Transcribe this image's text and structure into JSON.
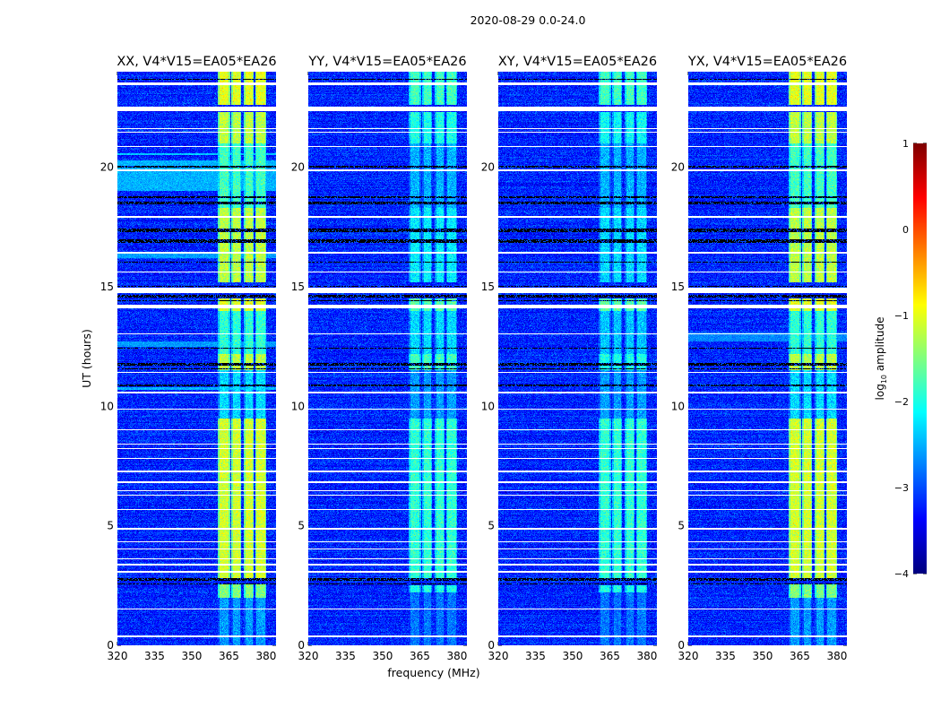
{
  "chart_data": {
    "type": "heatmap",
    "title": "2020-08-29 0.0-24.0",
    "xlabel": "frequency (MHz)",
    "ylabel": "UT (hours)",
    "xlim": [
      320,
      384
    ],
    "ylim": [
      0,
      24
    ],
    "xticks": [
      "320",
      "335",
      "350",
      "365",
      "380"
    ],
    "xtick_values": [
      320,
      335,
      350,
      365,
      380
    ],
    "yticks": [
      "0",
      "5",
      "10",
      "15",
      "20"
    ],
    "ytick_values": [
      0,
      5,
      10,
      15,
      20
    ],
    "colorbar": {
      "label": "log10 amplitude",
      "label_main": "log",
      "label_sub": "10",
      "label_rest": " amplitude",
      "range": [
        -4,
        1
      ],
      "ticks": [
        "1",
        "0",
        "−1",
        "−2",
        "−3",
        "−4"
      ],
      "tick_values": [
        1,
        0,
        -1,
        -2,
        -3,
        -4
      ],
      "colormap": "jet"
    },
    "background_level": -3.2,
    "rfi_channels_mhz": [
      [
        360.5,
        365.5
      ],
      [
        366,
        370
      ],
      [
        371,
        375
      ],
      [
        375.6,
        380
      ]
    ],
    "flagged_hours_white": [
      [
        23.45,
        23.55
      ],
      [
        22.35,
        22.55
      ],
      [
        21.6,
        21.65
      ],
      [
        21.45,
        21.5
      ],
      [
        20.85,
        20.9
      ],
      [
        19.85,
        19.9
      ],
      [
        17.9,
        17.95
      ],
      [
        16.4,
        16.45
      ],
      [
        15.6,
        15.65
      ],
      [
        14.75,
        14.95
      ],
      [
        14.1,
        14.25
      ],
      [
        13.0,
        13.05
      ],
      [
        11.4,
        11.45
      ],
      [
        10.55,
        10.6
      ],
      [
        9.85,
        9.9
      ],
      [
        9.0,
        9.05
      ],
      [
        8.4,
        8.45
      ],
      [
        8.2,
        8.25
      ],
      [
        7.8,
        7.85
      ],
      [
        7.25,
        7.3
      ],
      [
        6.8,
        6.85
      ],
      [
        6.45,
        6.5
      ],
      [
        6.25,
        6.3
      ],
      [
        5.65,
        5.7
      ],
      [
        4.85,
        4.9
      ],
      [
        4.3,
        4.35
      ],
      [
        4.0,
        4.05
      ],
      [
        3.6,
        3.65
      ],
      [
        3.35,
        3.4
      ],
      [
        3.05,
        3.1
      ],
      [
        1.5,
        1.55
      ],
      [
        0.35,
        0.4
      ]
    ],
    "flagged_hours_black": [
      [
        23.65,
        23.7
      ],
      [
        20.0,
        20.05
      ],
      [
        18.7,
        18.8
      ],
      [
        18.45,
        18.55
      ],
      [
        17.3,
        17.45
      ],
      [
        16.85,
        17.0
      ],
      [
        16.0,
        16.05
      ],
      [
        15.0,
        15.05
      ],
      [
        14.55,
        14.65
      ],
      [
        14.4,
        14.45
      ],
      [
        12.4,
        12.45
      ],
      [
        11.7,
        11.8
      ],
      [
        11.55,
        11.6
      ],
      [
        10.85,
        10.9
      ],
      [
        2.7,
        2.8
      ],
      [
        2.55,
        2.6
      ]
    ],
    "panels": [
      {
        "title": "XX, V4*V15=EA05*EA26",
        "rfi_activity": [
          [
            0,
            2.0,
            -2.6
          ],
          [
            2.0,
            2.6,
            -1.5
          ],
          [
            2.8,
            9.5,
            -1.1
          ],
          [
            9.5,
            11.5,
            -2.3
          ],
          [
            11.5,
            12.2,
            -1.2
          ],
          [
            12.2,
            14.0,
            -1.9
          ],
          [
            14.0,
            14.5,
            -1.0
          ],
          [
            15.2,
            18.3,
            -1.2
          ],
          [
            18.3,
            21.0,
            -1.8
          ],
          [
            21.0,
            22.3,
            -1.2
          ],
          [
            22.6,
            24.0,
            -1.0
          ]
        ],
        "broadband_events": [
          [
            19.0,
            20.3,
            -2.5
          ],
          [
            12.5,
            12.7,
            -2.6
          ],
          [
            16.2,
            16.4,
            -2.6
          ],
          [
            20.5,
            20.6,
            -2.4
          ],
          [
            10.7,
            10.8,
            -2.5
          ]
        ]
      },
      {
        "title": "YY, V4*V15=EA05*EA26",
        "rfi_activity": [
          [
            0,
            2.2,
            -2.8
          ],
          [
            2.2,
            2.5,
            -2.0
          ],
          [
            2.8,
            9.5,
            -1.9
          ],
          [
            9.5,
            11.5,
            -2.6
          ],
          [
            11.5,
            12.2,
            -1.8
          ],
          [
            12.2,
            14.0,
            -2.3
          ],
          [
            14.0,
            14.5,
            -1.7
          ],
          [
            15.2,
            18.3,
            -2.2
          ],
          [
            18.3,
            21.0,
            -2.5
          ],
          [
            21.0,
            22.3,
            -2.0
          ],
          [
            22.6,
            24.0,
            -1.8
          ]
        ],
        "broadband_events": []
      },
      {
        "title": "XY, V4*V15=EA05*EA26",
        "rfi_activity": [
          [
            0,
            2.2,
            -2.8
          ],
          [
            2.2,
            2.5,
            -2.0
          ],
          [
            2.8,
            9.5,
            -1.9
          ],
          [
            9.5,
            11.5,
            -2.6
          ],
          [
            11.5,
            12.2,
            -2.0
          ],
          [
            12.2,
            14.0,
            -2.4
          ],
          [
            14.0,
            14.5,
            -1.7
          ],
          [
            15.2,
            18.3,
            -2.3
          ],
          [
            18.3,
            21.0,
            -2.5
          ],
          [
            21.0,
            22.3,
            -2.1
          ],
          [
            22.6,
            24.0,
            -1.8
          ]
        ],
        "broadband_events": []
      },
      {
        "title": "YX, V4*V15=EA05*EA26",
        "rfi_activity": [
          [
            0,
            2.0,
            -2.6
          ],
          [
            2.0,
            2.6,
            -1.5
          ],
          [
            2.8,
            9.5,
            -1.1
          ],
          [
            9.5,
            11.5,
            -2.3
          ],
          [
            11.5,
            12.2,
            -1.2
          ],
          [
            12.2,
            14.0,
            -1.9
          ],
          [
            14.0,
            14.5,
            -1.0
          ],
          [
            15.2,
            18.3,
            -1.2
          ],
          [
            18.3,
            21.0,
            -1.8
          ],
          [
            21.0,
            22.3,
            -1.2
          ],
          [
            22.6,
            24.0,
            -1.0
          ]
        ],
        "broadband_events": [
          [
            12.7,
            13.1,
            -2.7
          ]
        ]
      }
    ]
  }
}
